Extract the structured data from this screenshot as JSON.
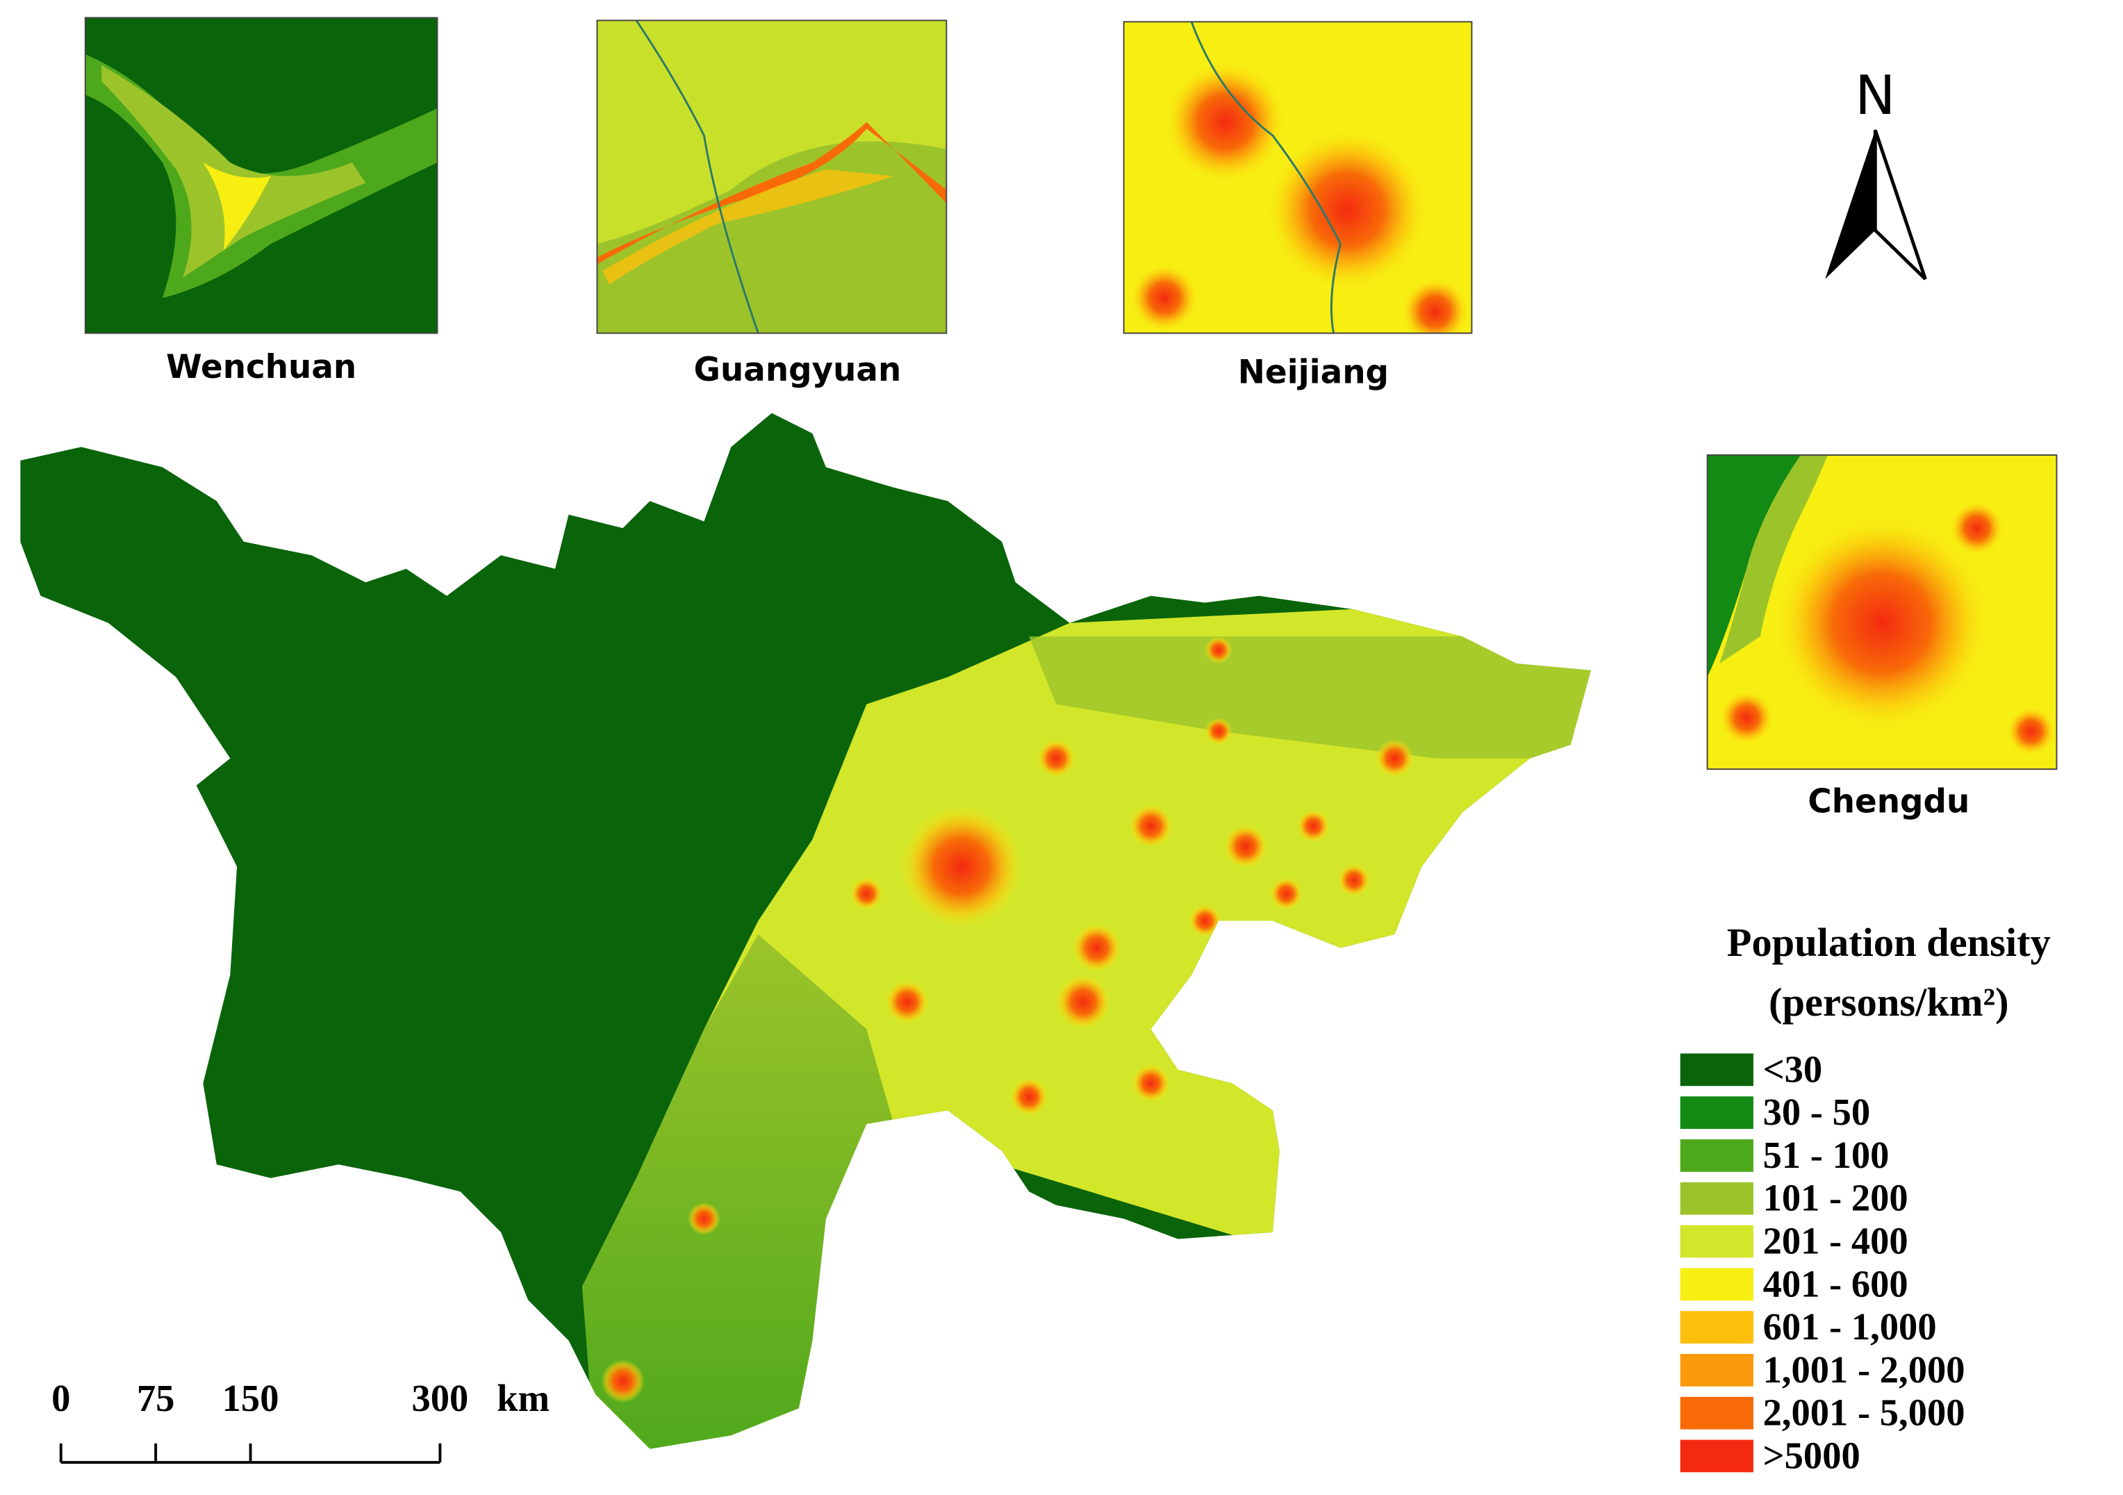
{
  "insets": [
    {
      "name": "Wenchuan"
    },
    {
      "name": "Guangyuan"
    },
    {
      "name": "Neijiang"
    },
    {
      "name": "Chengdu"
    }
  ],
  "north_arrow": {
    "label": "N"
  },
  "legend": {
    "title": "Population density",
    "subtitle": "(persons/km²)",
    "items": [
      {
        "label": "<30",
        "color": "#0a640a"
      },
      {
        "label": "30 - 50",
        "color": "#138a13"
      },
      {
        "label": "51 - 100",
        "color": "#4ea81c"
      },
      {
        "label": "101 - 200",
        "color": "#9cc42a"
      },
      {
        "label": "201 - 400",
        "color": "#d2e62a"
      },
      {
        "label": "401 - 600",
        "color": "#f7ee12"
      },
      {
        "label": "601 - 1,000",
        "color": "#fcc00c"
      },
      {
        "label": "1,001 - 2,000",
        "color": "#fb9a0a"
      },
      {
        "label": "2,001 - 5,000",
        "color": "#f86a08"
      },
      {
        "label": ">5000",
        "color": "#f42a10"
      }
    ]
  },
  "scale_bar": {
    "ticks": [
      0,
      75,
      150,
      300
    ],
    "unit": "km"
  }
}
